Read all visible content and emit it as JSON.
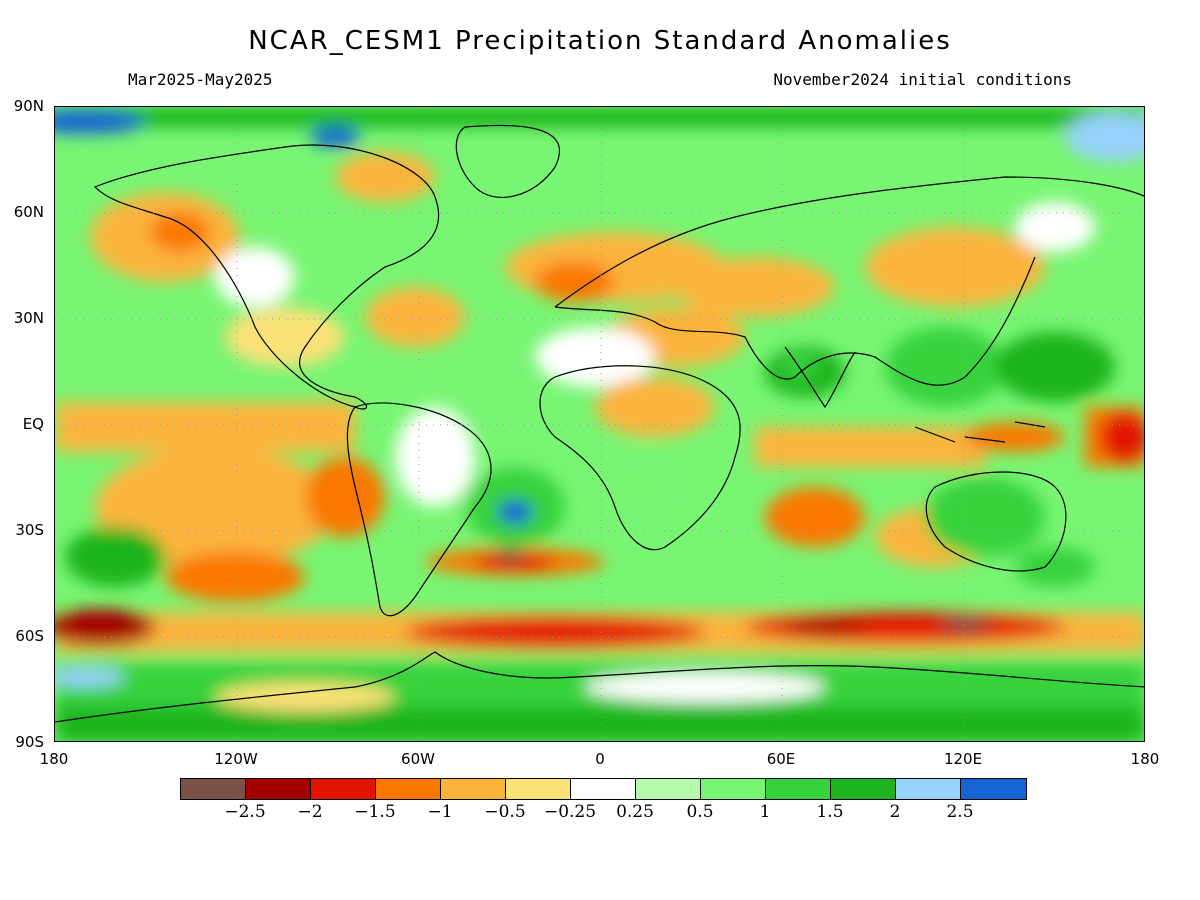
{
  "header": {
    "title": "NCAR_CESM1 Precipitation Standard Anomalies",
    "period": "Mar2025-May2025",
    "initial_conditions": "November2024 initial conditions"
  },
  "axes": {
    "lat_labels": [
      "90N",
      "60N",
      "30N",
      "EQ",
      "30S",
      "60S",
      "90S"
    ],
    "lon_labels": [
      "180",
      "120W",
      "60W",
      "0",
      "60E",
      "120E",
      "180"
    ]
  },
  "colorbar": {
    "colors": [
      "#7b5248",
      "#a50000",
      "#e21400",
      "#fa7800",
      "#fab43c",
      "#fae178",
      "#ffffff",
      "#b4faaa",
      "#78f573",
      "#37d23c",
      "#1eb41e",
      "#96d2fa",
      "#1464d2"
    ],
    "labels": [
      "−2.5",
      "−2",
      "−1.5",
      "−1",
      "−0.5",
      "−0.25",
      "0.25",
      "0.5",
      "1",
      "1.5",
      "2",
      "2.5"
    ]
  },
  "palette": {
    "coast": "#000000",
    "grid": "#999999"
  }
}
